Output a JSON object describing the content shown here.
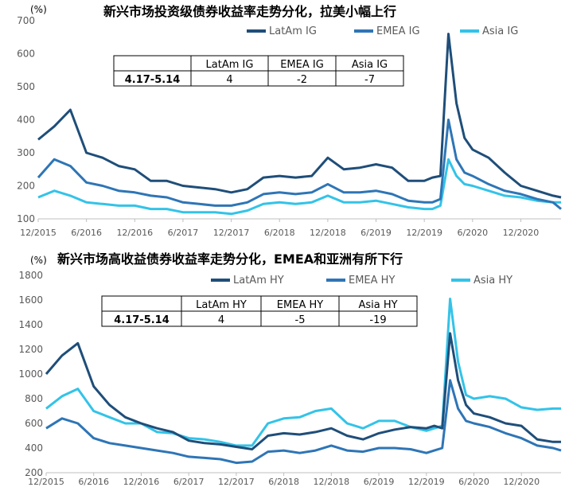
{
  "chart_data": [
    {
      "type": "line",
      "title": "新兴市场投资级债券收益率走势分化，拉美小幅上行",
      "unit_label": "(%)",
      "ylim": [
        100,
        700
      ],
      "yticks": [
        100,
        200,
        300,
        400,
        500,
        600,
        700
      ],
      "xticks": [
        "12/2015",
        "6/2016",
        "12/2016",
        "6/2017",
        "12/2017",
        "6/2018",
        "12/2018",
        "6/2019",
        "12/2019",
        "6/2020",
        "12/2020"
      ],
      "x": [
        "12/2015",
        "2/2016",
        "4/2016",
        "6/2016",
        "8/2016",
        "10/2016",
        "12/2016",
        "2/2017",
        "4/2017",
        "6/2017",
        "8/2017",
        "10/2017",
        "12/2017",
        "2/2018",
        "4/2018",
        "6/2018",
        "8/2018",
        "10/2018",
        "12/2018",
        "2/2019",
        "4/2019",
        "6/2019",
        "8/2019",
        "10/2019",
        "12/2019",
        "1/2020",
        "2/2020",
        "3/2020",
        "4/2020",
        "5/2020",
        "6/2020",
        "8/2020",
        "10/2020",
        "12/2020",
        "2/2021",
        "4/2021",
        "5/2021"
      ],
      "series": [
        {
          "name": "LatAm IG",
          "color": "#1f4e79",
          "values": [
            340,
            380,
            430,
            300,
            285,
            260,
            250,
            215,
            215,
            200,
            195,
            190,
            180,
            190,
            225,
            230,
            225,
            230,
            285,
            250,
            255,
            265,
            255,
            215,
            215,
            225,
            230,
            660,
            450,
            345,
            310,
            285,
            240,
            200,
            185,
            170,
            165
          ]
        },
        {
          "name": "EMEA IG",
          "color": "#2e75b6",
          "values": [
            225,
            280,
            260,
            210,
            200,
            185,
            180,
            170,
            165,
            150,
            145,
            140,
            140,
            150,
            175,
            180,
            175,
            180,
            205,
            180,
            180,
            185,
            175,
            155,
            150,
            150,
            160,
            400,
            280,
            240,
            230,
            205,
            185,
            175,
            160,
            150,
            130
          ]
        },
        {
          "name": "Asia IG",
          "color": "#33c3e8",
          "values": [
            165,
            185,
            170,
            150,
            145,
            140,
            140,
            130,
            130,
            120,
            120,
            120,
            115,
            125,
            145,
            150,
            145,
            150,
            170,
            150,
            150,
            155,
            145,
            135,
            130,
            130,
            140,
            280,
            230,
            205,
            200,
            185,
            170,
            165,
            155,
            150,
            150
          ]
        }
      ],
      "table": {
        "headers": [
          "",
          "LatAm IG",
          "EMEA IG",
          "Asia IG"
        ],
        "row_label": "4.17-5.14",
        "values": [
          "4",
          "-2",
          "-7"
        ]
      }
    },
    {
      "type": "line",
      "title": "新兴市场高收益债券收益率走势分化，EMEA和亚洲有所下行",
      "unit_label": "(%)",
      "ylim": [
        200,
        1800
      ],
      "yticks": [
        200,
        400,
        600,
        800,
        1000,
        1200,
        1400,
        1600,
        1800
      ],
      "xticks": [
        "12/2015",
        "6/2016",
        "12/2016",
        "6/2017",
        "12/2017",
        "6/2018",
        "12/2018",
        "6/2019",
        "12/2019",
        "6/2020",
        "12/2020"
      ],
      "x": [
        "12/2015",
        "2/2016",
        "4/2016",
        "6/2016",
        "8/2016",
        "10/2016",
        "12/2016",
        "2/2017",
        "4/2017",
        "6/2017",
        "8/2017",
        "10/2017",
        "12/2017",
        "2/2018",
        "4/2018",
        "6/2018",
        "8/2018",
        "10/2018",
        "12/2018",
        "2/2019",
        "4/2019",
        "6/2019",
        "8/2019",
        "10/2019",
        "12/2019",
        "1/2020",
        "2/2020",
        "3/2020",
        "4/2020",
        "5/2020",
        "6/2020",
        "8/2020",
        "10/2020",
        "12/2020",
        "2/2021",
        "4/2021",
        "5/2021"
      ],
      "series": [
        {
          "name": "LatAm HY",
          "color": "#1f4e79",
          "values": [
            1000,
            1150,
            1250,
            900,
            750,
            650,
            600,
            560,
            530,
            460,
            440,
            430,
            410,
            390,
            500,
            520,
            510,
            530,
            560,
            500,
            470,
            520,
            550,
            570,
            560,
            580,
            560,
            1330,
            950,
            750,
            680,
            650,
            600,
            580,
            470,
            450,
            450
          ]
        },
        {
          "name": "EMEA HY",
          "color": "#2e75b6",
          "values": [
            560,
            640,
            600,
            480,
            440,
            420,
            400,
            380,
            360,
            330,
            320,
            310,
            280,
            290,
            370,
            380,
            360,
            380,
            420,
            380,
            370,
            400,
            400,
            390,
            360,
            380,
            400,
            950,
            720,
            620,
            600,
            570,
            520,
            480,
            420,
            400,
            380
          ]
        },
        {
          "name": "Asia HY",
          "color": "#33c3e8",
          "values": [
            720,
            820,
            880,
            700,
            650,
            600,
            600,
            530,
            520,
            480,
            470,
            450,
            420,
            420,
            600,
            640,
            650,
            700,
            720,
            600,
            560,
            620,
            620,
            570,
            540,
            560,
            580,
            1610,
            1100,
            830,
            800,
            820,
            800,
            730,
            710,
            720,
            720
          ]
        }
      ],
      "table": {
        "headers": [
          "",
          "LatAm HY",
          "EMEA HY",
          "Asia HY"
        ],
        "row_label": "4.17-5.14",
        "values": [
          "4",
          "-5",
          "-19"
        ]
      }
    }
  ]
}
